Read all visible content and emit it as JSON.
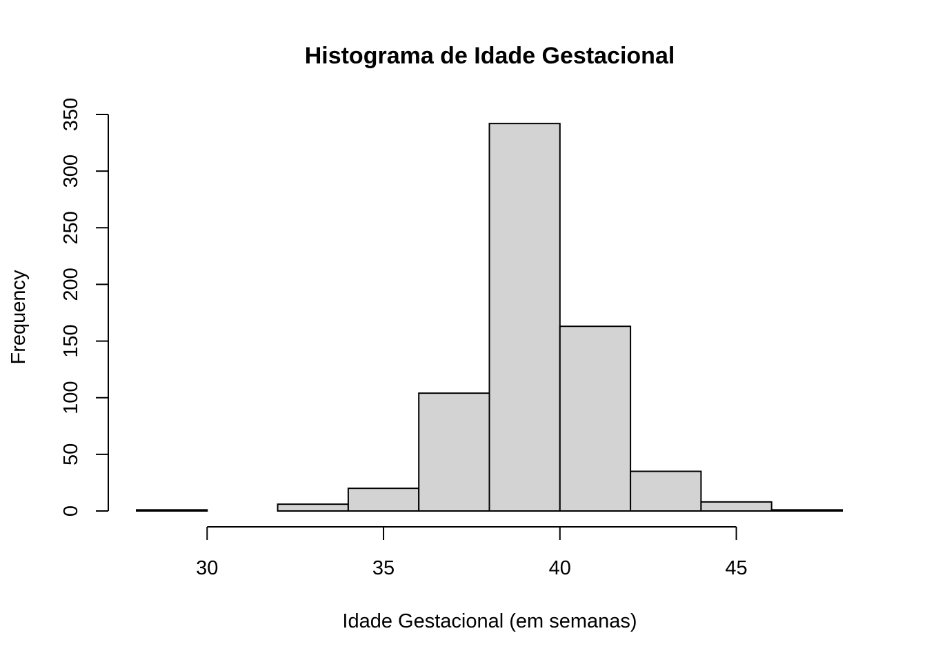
{
  "chart_data": {
    "type": "bar",
    "title": "Histograma de Idade Gestacional",
    "xlabel": "Idade Gestacional (em semanas)",
    "ylabel": "Frequency",
    "bin_edges": [
      28,
      30,
      32,
      34,
      36,
      38,
      40,
      42,
      44,
      46,
      48
    ],
    "values": [
      1,
      0,
      6,
      20,
      104,
      342,
      163,
      35,
      8,
      1
    ],
    "xlim": [
      28,
      48
    ],
    "ylim": [
      0,
      350
    ],
    "x_ticks": [
      30,
      35,
      40,
      45
    ],
    "y_ticks": [
      0,
      50,
      100,
      150,
      200,
      250,
      300,
      350
    ],
    "grid": false,
    "colors": {
      "bar_fill": "#d3d3d3",
      "bar_stroke": "#000000"
    }
  }
}
